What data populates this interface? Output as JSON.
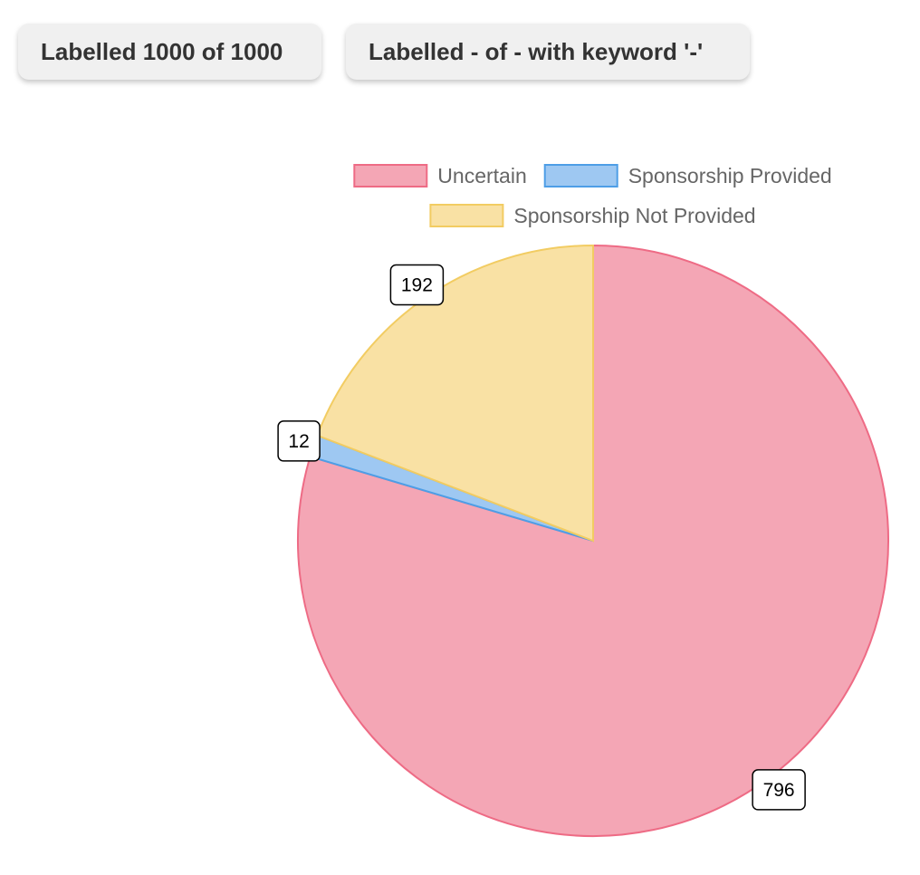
{
  "header": {
    "labelled_button": "Labelled 1000 of 1000",
    "keyword_button": "Labelled - of - with keyword '-'"
  },
  "chart_data": {
    "type": "pie",
    "title": "",
    "legend_position": "top",
    "slices": [
      {
        "label": "Uncertain",
        "value": 796,
        "fill": "#f4a6b5",
        "stroke": "#ee6b85"
      },
      {
        "label": "Sponsorship Provided",
        "value": 12,
        "fill": "#9ec8f2",
        "stroke": "#4e9ee6"
      },
      {
        "label": "Sponsorship Not Provided",
        "value": 192,
        "fill": "#f9e1a4",
        "stroke": "#f2cc62"
      }
    ]
  }
}
